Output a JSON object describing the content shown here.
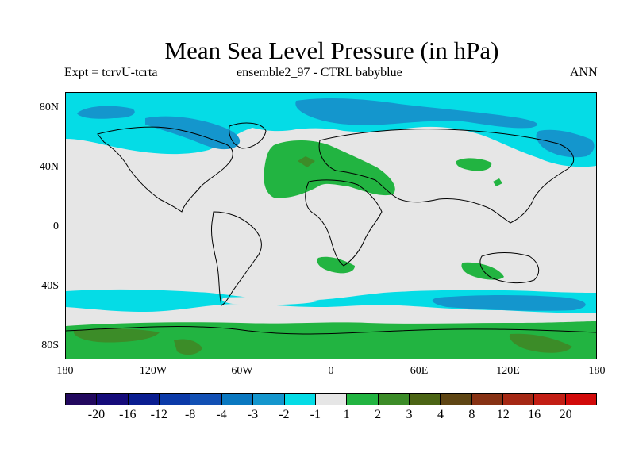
{
  "title": "Mean Sea Level Pressure (in hPa)",
  "experiment_label": "Expt = tcrvU-tcrta",
  "ensemble_label": "ensemble2_97 - CTRL babyblue",
  "season_label": "ANN",
  "y_ticks": [
    "80N",
    "40N",
    "0",
    "40S",
    "80S"
  ],
  "x_ticks": [
    "180",
    "120W",
    "60W",
    "0",
    "60E",
    "120E",
    "180"
  ],
  "colorbar": {
    "colors": [
      "#22085e",
      "#150b7a",
      "#0a1d90",
      "#0b3aa8",
      "#1250b4",
      "#0a78c0",
      "#1496cd",
      "#05dce6",
      "#e6e6e6",
      "#22b441",
      "#3c8c28",
      "#4b6414",
      "#5f4614",
      "#873214",
      "#a52814",
      "#c31e14",
      "#d20a0a"
    ],
    "labels": [
      "-20",
      "-16",
      "-12",
      "-8",
      "-4",
      "-3",
      "-2",
      "-1",
      "1",
      "2",
      "3",
      "4",
      "8",
      "12",
      "16",
      "20"
    ]
  },
  "map_colors": {
    "background": "#e6e6e6",
    "light_blue": "#05dce6",
    "mid_blue": "#1496cd",
    "light_green": "#22b441",
    "dark_green": "#3c8c28"
  }
}
